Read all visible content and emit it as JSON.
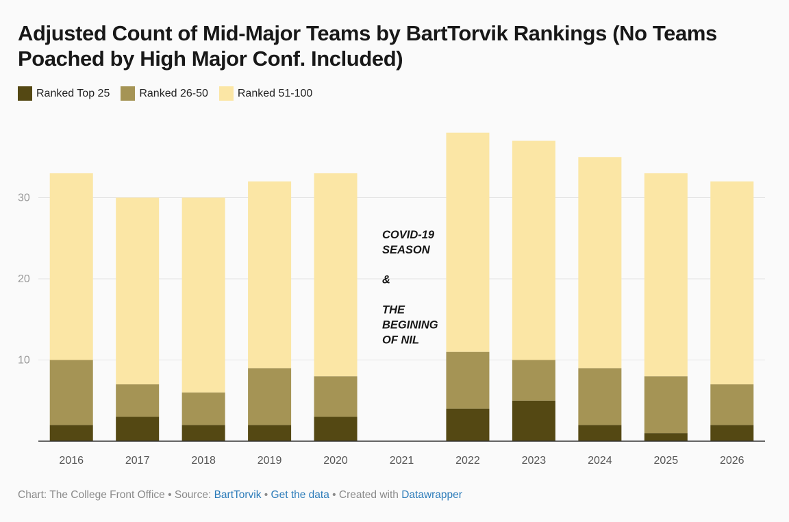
{
  "page": {
    "title": "Adjusted Count of Mid-Major Teams by BartTorvik Rankings (No Teams Poached by High Major Conf. Included)"
  },
  "legend": [
    {
      "label": "Ranked Top 25",
      "color": "#544813"
    },
    {
      "label": "Ranked 26-50",
      "color": "#a59455"
    },
    {
      "label": "Ranked 51-100",
      "color": "#fbe6a5"
    }
  ],
  "chart_data": {
    "type": "bar",
    "stacked": true,
    "title": "Adjusted Count of Mid-Major Teams by BartTorvik Rankings (No Teams Poached by High Major Conf. Included)",
    "categories": [
      "2016",
      "2017",
      "2018",
      "2019",
      "2020",
      "2021",
      "2022",
      "2023",
      "2024",
      "2025",
      "2026"
    ],
    "series": [
      {
        "name": "Ranked Top 25",
        "color": "#544813",
        "values": [
          2,
          3,
          2,
          2,
          3,
          0,
          4,
          5,
          2,
          1,
          2
        ]
      },
      {
        "name": "Ranked 26-50",
        "color": "#a59455",
        "values": [
          8,
          4,
          4,
          7,
          5,
          0,
          7,
          5,
          7,
          7,
          5
        ]
      },
      {
        "name": "Ranked 51-100",
        "color": "#fbe6a5",
        "values": [
          23,
          23,
          24,
          23,
          25,
          0,
          27,
          27,
          26,
          25,
          25
        ]
      }
    ],
    "yticks": [
      10,
      20,
      30
    ],
    "ylim": [
      0,
      40
    ],
    "grid": true,
    "legend_position": "top-left",
    "annotation": {
      "category": "2021",
      "lines": [
        "COVID-19",
        "SEASON",
        "",
        "&",
        "",
        "THE",
        "BEGINING",
        "OF NIL"
      ]
    }
  },
  "footer": {
    "chart_label": "Chart: The College Front Office",
    "sep1": " • Source: ",
    "source_link": "BartTorvik",
    "sep2": " • ",
    "data_link": "Get the data",
    "sep3": " • Created with ",
    "created_link": "Datawrapper"
  }
}
